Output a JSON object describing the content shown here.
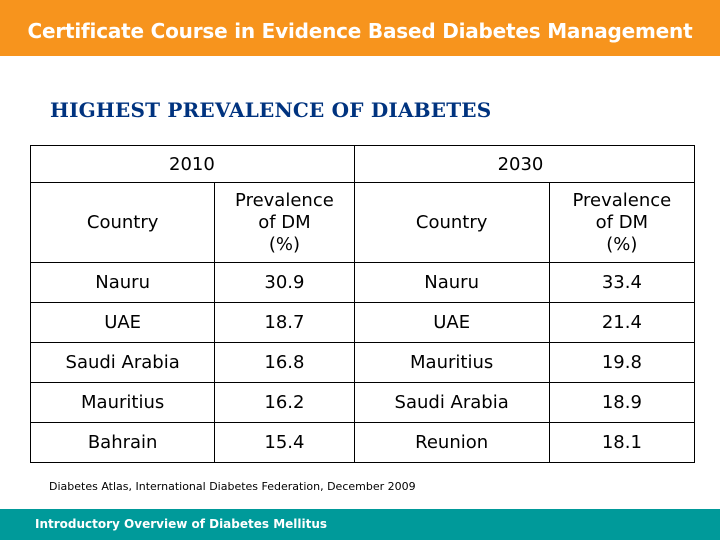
{
  "banner": {
    "title": "Certificate Course in Evidence Based Diabetes Management"
  },
  "slide_title": "HIGHEST PREVALENCE OF DIABETES",
  "table": {
    "year_left": "2010",
    "year_right": "2030",
    "headers": {
      "country": "Country",
      "prevalence_line1": "Prevalence",
      "prevalence_line2": "of DM",
      "prevalence_line3": "(%)"
    },
    "rows": [
      {
        "country_2010": "Nauru",
        "prev_2010": "30.9",
        "country_2030": "Nauru",
        "prev_2030": "33.4"
      },
      {
        "country_2010": "UAE",
        "prev_2010": "18.7",
        "country_2030": "UAE",
        "prev_2030": "21.4"
      },
      {
        "country_2010": "Saudi Arabia",
        "prev_2010": "16.8",
        "country_2030": "Mauritius",
        "prev_2030": "19.8"
      },
      {
        "country_2010": "Mauritius",
        "prev_2010": "16.2",
        "country_2030": "Saudi Arabia",
        "prev_2030": "18.9"
      },
      {
        "country_2010": "Bahrain",
        "prev_2010": "15.4",
        "country_2030": "Reunion",
        "prev_2030": "18.1"
      }
    ]
  },
  "source": "Diabetes Atlas, International Diabetes Federation, December 2009",
  "footer": {
    "title": "Introductory Overview of Diabetes Mellitus"
  },
  "colors": {
    "top_banner": "#f7941d",
    "bottom_banner": "#009a9a",
    "title": "#00337f"
  }
}
